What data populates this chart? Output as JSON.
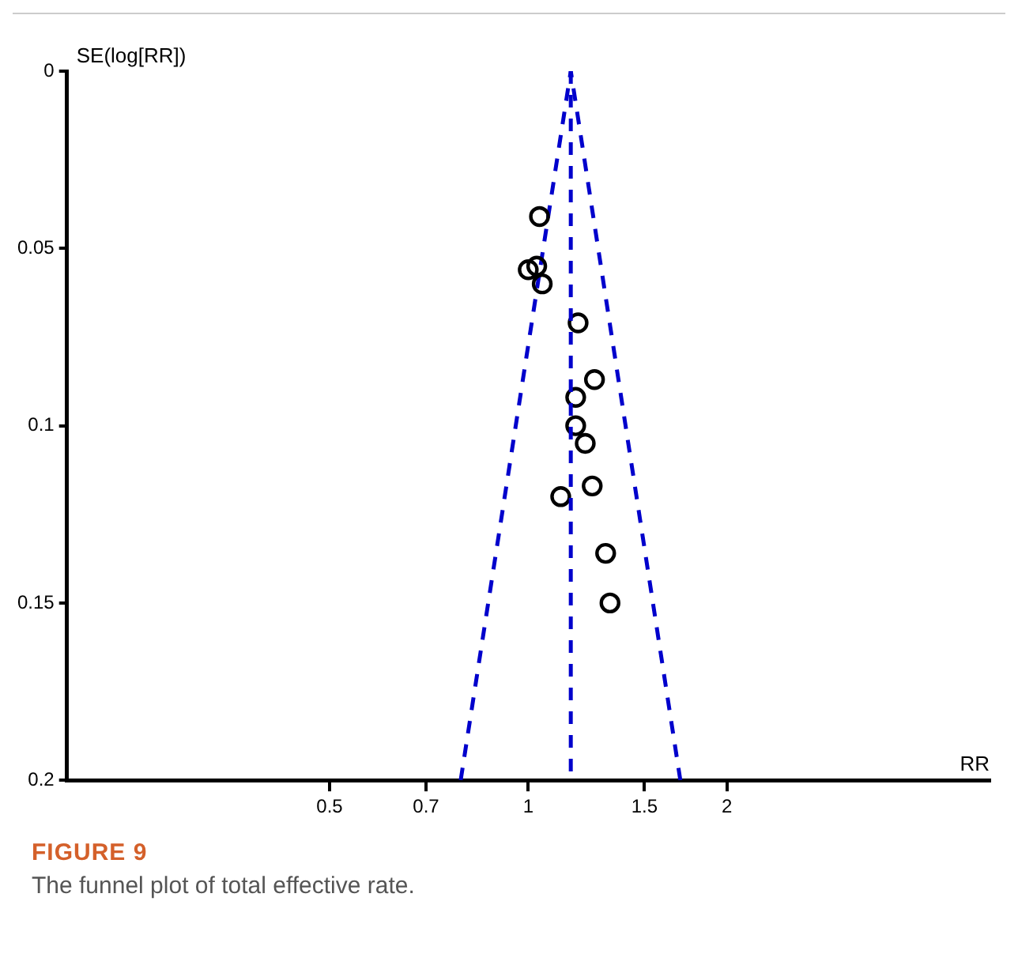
{
  "chart_data": {
    "type": "scatter",
    "xlabel": "RR",
    "ylabel": "SE(log[RR])",
    "log": "x",
    "xlim": [
      0.2,
      5
    ],
    "xticks": [
      0.5,
      0.7,
      1,
      1.5,
      2
    ],
    "ylim": [
      0.2,
      0
    ],
    "yticks": [
      0,
      0.05,
      0.1,
      0.15,
      0.2
    ],
    "series": [
      {
        "marker": "circle",
        "color": "#000000",
        "x": [
          1.04,
          1.0,
          1.03,
          1.05,
          1.19,
          1.26,
          1.18,
          1.18,
          1.22,
          1.25,
          1.12,
          1.31,
          1.33
        ],
        "values": [
          0.041,
          0.056,
          0.055,
          0.06,
          0.071,
          0.087,
          0.092,
          0.1,
          0.105,
          0.117,
          0.12,
          0.136,
          0.15
        ]
      },
      {
        "type": "line",
        "marker": "none",
        "line_style": "dashed",
        "color": "#0000cc",
        "x": [
          0.79,
          1.16,
          1.7
        ],
        "values": [
          0.2,
          0,
          0.2
        ]
      }
    ],
    "ref_lines": [
      {
        "axis": "x",
        "value": 1.16,
        "color": "#0000cc",
        "line_style": "dashed"
      }
    ],
    "annotations": [
      "FIGURE 9",
      "The funnel plot of total effective rate."
    ]
  }
}
